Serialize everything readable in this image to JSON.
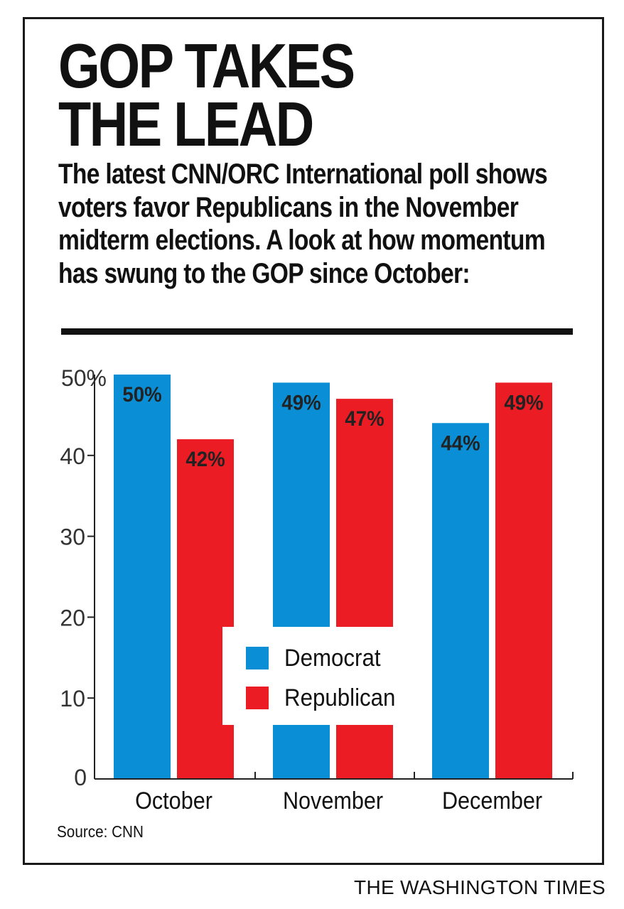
{
  "headline": "GOP TAKES\nTHE LEAD",
  "subhead": "The latest CNN/ORC International poll shows voters favor Republicans in the November midterm elections. A look at how momentum has swung to the GOP since October:",
  "source": "Source: CNN",
  "credit": "THE WASHINGTON TIMES",
  "colors": {
    "democrat": "#0a8fd6",
    "republican": "#ec1c24",
    "text": "#111111"
  },
  "chart_data": {
    "type": "bar",
    "categories": [
      "October",
      "November",
      "December"
    ],
    "series": [
      {
        "name": "Democrat",
        "values": [
          50,
          49,
          44
        ],
        "labels": [
          "50%",
          "49%",
          "44%"
        ],
        "color": "#0a8fd6"
      },
      {
        "name": "Republican",
        "values": [
          42,
          47,
          49
        ],
        "labels": [
          "42%",
          "47%",
          "49%"
        ],
        "color": "#ec1c24"
      }
    ],
    "ylim": [
      0,
      50
    ],
    "yticks": [
      {
        "value": 0,
        "label": "0"
      },
      {
        "value": 10,
        "label": "10"
      },
      {
        "value": 20,
        "label": "20"
      },
      {
        "value": 30,
        "label": "30"
      },
      {
        "value": 40,
        "label": "40"
      },
      {
        "value": 50,
        "label": "50%"
      }
    ],
    "legend_position": "center",
    "grid": false
  }
}
